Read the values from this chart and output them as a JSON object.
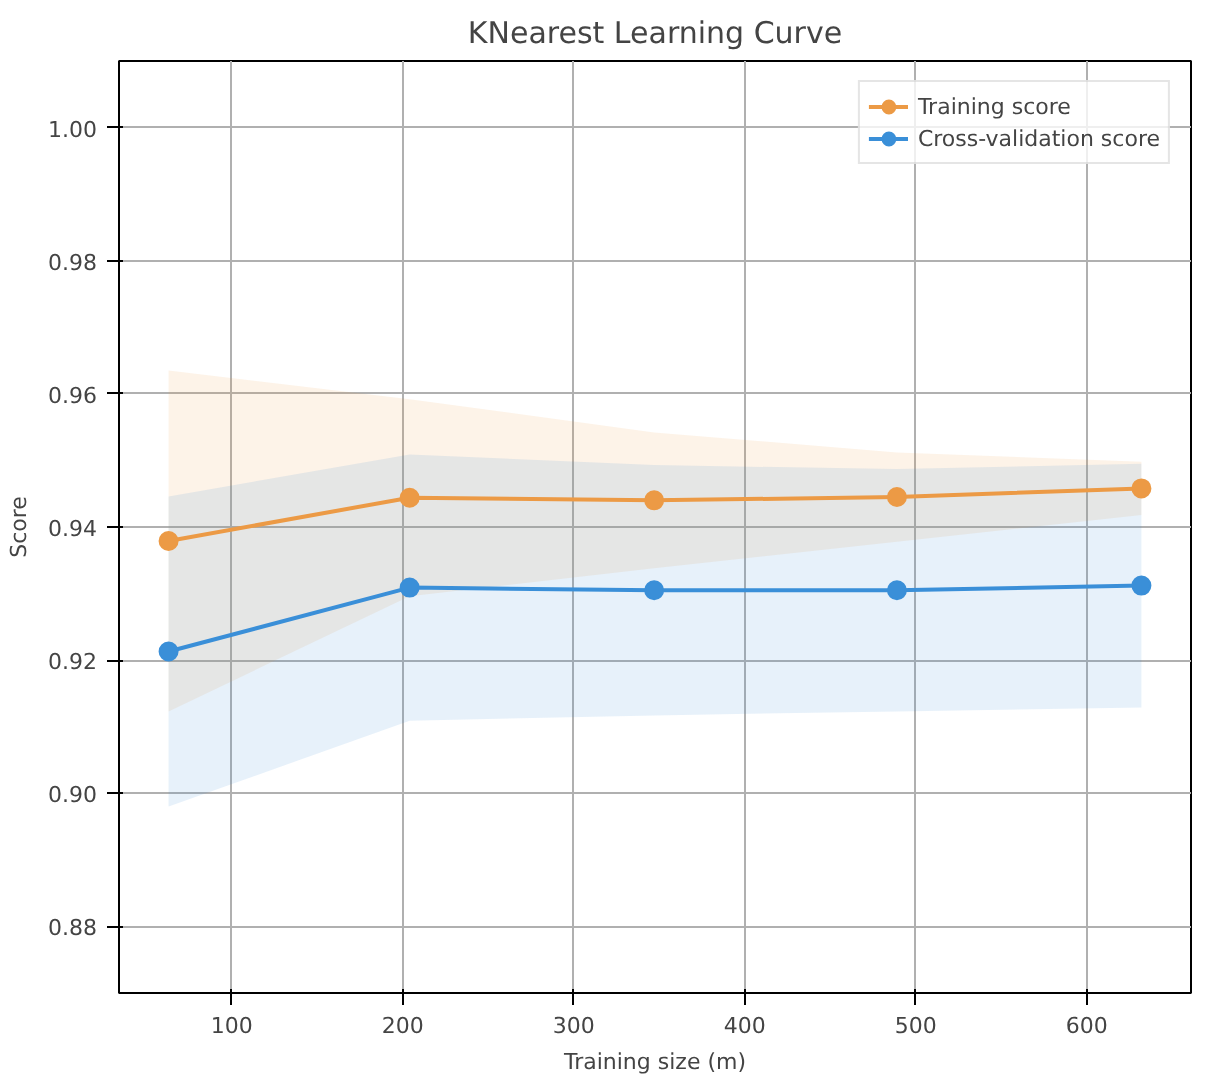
{
  "chart_data": {
    "type": "line",
    "title": "KNearest Learning Curve",
    "xlabel": "Training size (m)",
    "ylabel": "Score",
    "xlim": [
      34,
      661
    ],
    "xticks": [
      100,
      200,
      300,
      400,
      500,
      600
    ],
    "ylim": [
      0.87,
      1.01
    ],
    "yticks": [
      0.88,
      {
        "value": 0.9,
        "label": "0.90"
      },
      0.92,
      0.94,
      0.96,
      0.98,
      {
        "value": 1,
        "label": "1.00"
      }
    ],
    "grid": true,
    "legend": "top right",
    "marker": "circle",
    "line_style": "solid",
    "series": [
      {
        "name": "Training score",
        "color": "#ec9a45",
        "x": [
          63,
          204,
          347,
          489,
          632
        ],
        "values": [
          0.9379,
          0.9444,
          0.944,
          0.9445,
          0.9458
        ],
        "lower": [
          0.9123,
          0.9296,
          0.9338,
          0.9378,
          0.9418
        ],
        "upper": [
          0.9635,
          0.9592,
          0.9542,
          0.9512,
          0.9498
        ]
      },
      {
        "name": "Cross-validation score",
        "color": "#3a8fd8",
        "x": [
          63,
          204,
          347,
          489,
          632
        ],
        "values": [
          0.9213,
          0.9309,
          0.9305,
          0.9305,
          0.9312
        ],
        "lower": [
          0.898,
          0.9109,
          0.9117,
          0.9123,
          0.9129
        ],
        "upper": [
          0.9446,
          0.9509,
          0.9493,
          0.9487,
          0.9495
        ]
      }
    ]
  }
}
